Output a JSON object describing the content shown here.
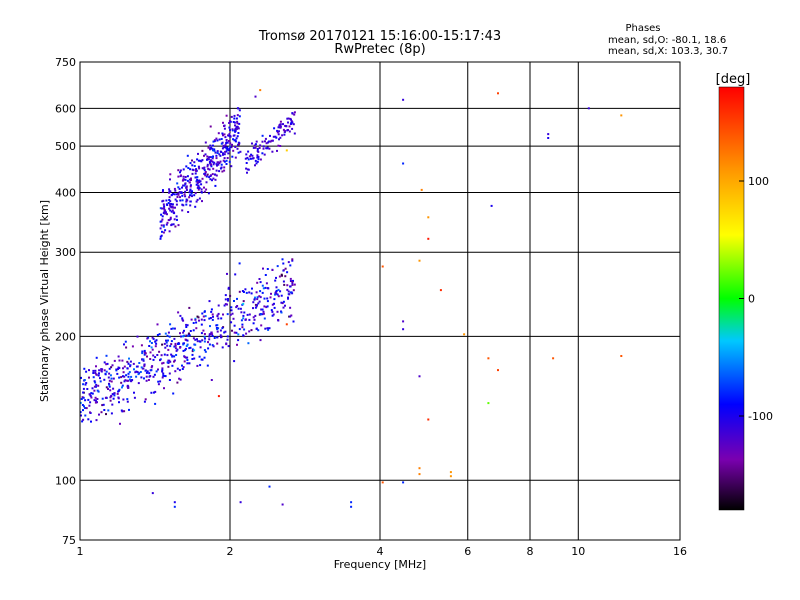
{
  "chart_data": {
    "type": "scatter",
    "title": "Tromsø 20170121 15:16:00-15:17:43",
    "subtitle": "RwPretec (8p)",
    "xlabel": "Frequency [MHz]",
    "ylabel": "Stationary phase Virtual Height [km]",
    "x_scale": "log",
    "y_scale": "log",
    "xlim": [
      1,
      16
    ],
    "ylim": [
      75,
      750
    ],
    "x_ticks": [
      1,
      2,
      4,
      6,
      8,
      10,
      16
    ],
    "x_tick_labels": [
      "1",
      "2",
      "4",
      "6",
      "8",
      "10",
      "16"
    ],
    "y_ticks": [
      75,
      100,
      200,
      300,
      400,
      500,
      600,
      750
    ],
    "y_tick_labels": [
      "75",
      "100",
      "200",
      "300",
      "400",
      "500",
      "600",
      "750"
    ],
    "grid": true,
    "legend": {
      "title": "Phases",
      "lines": [
        "mean, sd,O: -80.1, 18.6",
        "mean, sd,X: 103.3, 30.7"
      ],
      "placement": "top-right"
    },
    "colorbar": {
      "label": "[deg]",
      "range": [
        -180,
        180
      ],
      "ticks": [
        100,
        0,
        -100
      ],
      "tick_labels": [
        "100",
        "0",
        "-100"
      ],
      "colormap": "rainbow"
    },
    "clusters": [
      {
        "f_range": [
          1.45,
          2.1
        ],
        "h_range": [
          320,
          600
        ],
        "count": 420,
        "phase_mean": -110,
        "phase_sd": 25
      },
      {
        "f_range": [
          2.15,
          2.7
        ],
        "h_range": [
          440,
          600
        ],
        "count": 110,
        "phase_mean": -110,
        "phase_sd": 20
      },
      {
        "f_range": [
          1.0,
          2.7
        ],
        "h_range": [
          130,
          290
        ],
        "count": 700,
        "phase_mean": -105,
        "phase_sd": 35
      }
    ],
    "points": [
      {
        "f": 2.3,
        "h": 655,
        "phase": 120
      },
      {
        "f": 2.25,
        "h": 635,
        "phase": -120
      },
      {
        "f": 4.45,
        "h": 625,
        "phase": -110
      },
      {
        "f": 6.9,
        "h": 645,
        "phase": 150
      },
      {
        "f": 10.5,
        "h": 600,
        "phase": -110
      },
      {
        "f": 12.2,
        "h": 580,
        "phase": 110
      },
      {
        "f": 8.7,
        "h": 530,
        "phase": -110
      },
      {
        "f": 8.7,
        "h": 520,
        "phase": -100
      },
      {
        "f": 4.45,
        "h": 460,
        "phase": -80
      },
      {
        "f": 4.85,
        "h": 405,
        "phase": 120
      },
      {
        "f": 6.7,
        "h": 375,
        "phase": -100
      },
      {
        "f": 5.0,
        "h": 355,
        "phase": 110
      },
      {
        "f": 5.0,
        "h": 320,
        "phase": 170
      },
      {
        "f": 4.05,
        "h": 280,
        "phase": 140
      },
      {
        "f": 4.8,
        "h": 288,
        "phase": 110
      },
      {
        "f": 5.3,
        "h": 250,
        "phase": 160
      },
      {
        "f": 4.45,
        "h": 215,
        "phase": -120
      },
      {
        "f": 4.45,
        "h": 207,
        "phase": -110
      },
      {
        "f": 5.9,
        "h": 202,
        "phase": 110
      },
      {
        "f": 6.6,
        "h": 180,
        "phase": 140
      },
      {
        "f": 8.9,
        "h": 180,
        "phase": 140
      },
      {
        "f": 12.2,
        "h": 182,
        "phase": 140
      },
      {
        "f": 6.9,
        "h": 170,
        "phase": 150
      },
      {
        "f": 4.8,
        "h": 165,
        "phase": -120
      },
      {
        "f": 6.6,
        "h": 145,
        "phase": 20
      },
      {
        "f": 5.0,
        "h": 134,
        "phase": 160
      },
      {
        "f": 4.8,
        "h": 106,
        "phase": 120
      },
      {
        "f": 4.8,
        "h": 103,
        "phase": 120
      },
      {
        "f": 5.55,
        "h": 104,
        "phase": 110
      },
      {
        "f": 5.55,
        "h": 102,
        "phase": 110
      },
      {
        "f": 4.05,
        "h": 99,
        "phase": 140
      },
      {
        "f": 4.45,
        "h": 99,
        "phase": -80
      },
      {
        "f": 2.4,
        "h": 97,
        "phase": -80
      },
      {
        "f": 1.4,
        "h": 94,
        "phase": -110
      },
      {
        "f": 1.55,
        "h": 90,
        "phase": -100
      },
      {
        "f": 1.55,
        "h": 88,
        "phase": -80
      },
      {
        "f": 2.1,
        "h": 90,
        "phase": -110
      },
      {
        "f": 2.55,
        "h": 89,
        "phase": -120
      },
      {
        "f": 3.5,
        "h": 90,
        "phase": -80
      },
      {
        "f": 3.5,
        "h": 88,
        "phase": -80
      },
      {
        "f": 2.6,
        "h": 212,
        "phase": 150
      },
      {
        "f": 1.9,
        "h": 150,
        "phase": 170
      },
      {
        "f": 2.6,
        "h": 490,
        "phase": 80
      }
    ]
  }
}
